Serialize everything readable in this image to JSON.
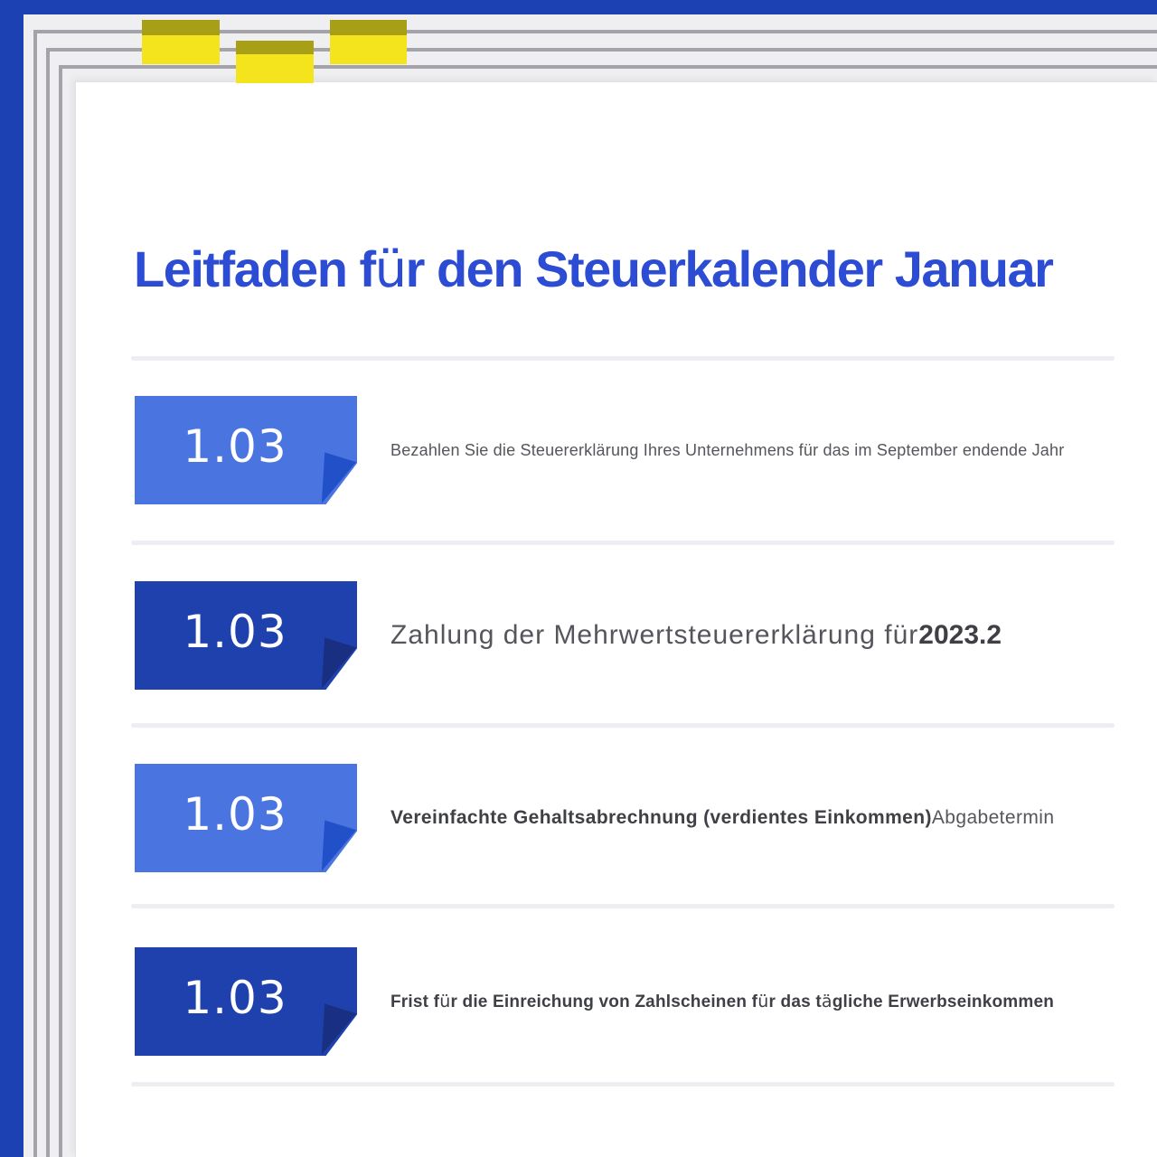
{
  "page": {
    "title": "Leitfaden für den Steuerkalender Januar"
  },
  "rows": [
    {
      "date": "1.03",
      "style": "light",
      "text": "Bezahlen Sie die Steuererklärung Ihres Unternehmens für das im September endende Jahr"
    },
    {
      "date": "1.03",
      "style": "dark",
      "text_regular": "Zahlung der Mehrwertsteuererklärung für ",
      "text_bold": "2023.2"
    },
    {
      "date": "1.03",
      "style": "light",
      "text_bold": "Vereinfachte Gehaltsabrechnung (verdientes Einkommen)",
      "text_regular": " Abgabetermin"
    },
    {
      "date": "1.03",
      "style": "dark",
      "text_bold": "Frist für die Einreichung von Zahlscheinen für das tägliche Erwerbseinkommen"
    }
  ],
  "colors": {
    "frame-blue": "#1c41b2",
    "title-blue": "#2b4cd3",
    "badge-light": "#4a74e0",
    "badge-light-fold": "#2150c8",
    "badge-dark": "#1e41ad",
    "badge-dark-fold": "#182f82",
    "tape-yellow": "#f4e41e",
    "tape-olive": "#a79f15",
    "divider": "#eeedf2",
    "text-gray": "#55565c",
    "text-dark": "#3f4045"
  }
}
